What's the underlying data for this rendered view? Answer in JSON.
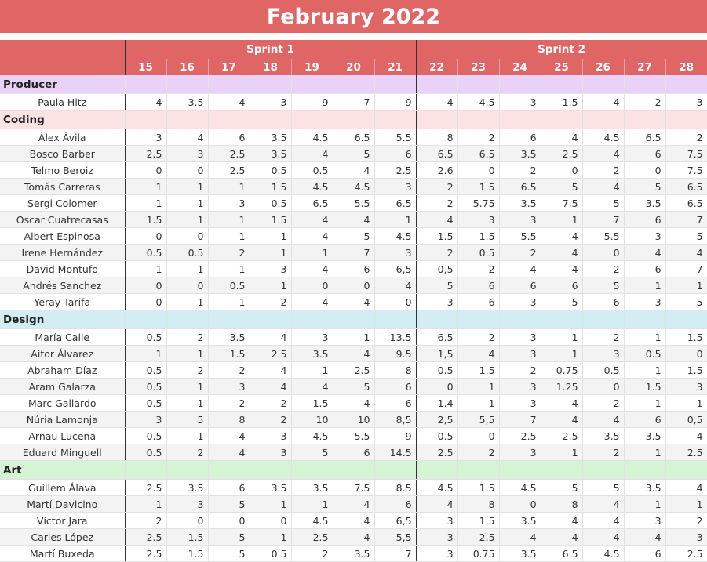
{
  "title": "February 2022",
  "sprints": [
    "Sprint 1",
    "Sprint 2"
  ],
  "days": [
    "15",
    "16",
    "17",
    "18",
    "19",
    "20",
    "21",
    "22",
    "23",
    "24",
    "25",
    "26",
    "27",
    "28"
  ],
  "sections": [
    {
      "name": "Producer",
      "color": "#ead1f7",
      "rows": [
        {
          "name": "Paula Hitz",
          "values": [
            "4",
            "3.5",
            "4",
            "3",
            "9",
            "7",
            "9",
            "4",
            "4.5",
            "3",
            "1.5",
            "4",
            "2",
            "3"
          ]
        }
      ]
    },
    {
      "name": "Coding",
      "color": "#fce3e3",
      "rows": [
        {
          "name": "Álex Ávila",
          "values": [
            "3",
            "4",
            "6",
            "3.5",
            "4.5",
            "6.5",
            "5.5",
            "8",
            "2",
            "6",
            "4",
            "4.5",
            "6.5",
            "2"
          ]
        },
        {
          "name": "Bosco Barber",
          "values": [
            "2.5",
            "3",
            "2.5",
            "3.5",
            "4",
            "5",
            "6",
            "6.5",
            "6.5",
            "3.5",
            "2.5",
            "4",
            "6",
            "7.5"
          ]
        },
        {
          "name": "Telmo Beroiz",
          "values": [
            "0",
            "0",
            "2.5",
            "0.5",
            "0.5",
            "4",
            "2.5",
            "2.6",
            "0",
            "2",
            "0",
            "2",
            "0",
            "7.5"
          ]
        },
        {
          "name": "Tomás Carreras",
          "values": [
            "1",
            "1",
            "1",
            "1.5",
            "4.5",
            "4.5",
            "3",
            "2",
            "1.5",
            "6.5",
            "5",
            "4",
            "5",
            "6.5"
          ]
        },
        {
          "name": "Sergi Colomer",
          "values": [
            "1",
            "1",
            "3",
            "0.5",
            "6.5",
            "5.5",
            "6.5",
            "2",
            "5.75",
            "3.5",
            "7.5",
            "5",
            "3.5",
            "6.5"
          ]
        },
        {
          "name": "Oscar Cuatrecasas",
          "values": [
            "1.5",
            "1",
            "1",
            "1.5",
            "4",
            "4",
            "1",
            "4",
            "3",
            "3",
            "1",
            "7",
            "6",
            "7"
          ]
        },
        {
          "name": "Albert Espinosa",
          "values": [
            "0",
            "0",
            "1",
            "1",
            "4",
            "5",
            "4.5",
            "1.5",
            "1.5",
            "5.5",
            "4",
            "5.5",
            "3",
            "5"
          ]
        },
        {
          "name": "Irene Hernández",
          "values": [
            "0.5",
            "0.5",
            "2",
            "1",
            "1",
            "7",
            "3",
            "2",
            "0.5",
            "2",
            "4",
            "0",
            "4",
            "4"
          ]
        },
        {
          "name": "David Montufo",
          "values": [
            "1",
            "1",
            "1",
            "3",
            "4",
            "6",
            "6,5",
            "0,5",
            "2",
            "4",
            "4",
            "2",
            "6",
            "7"
          ]
        },
        {
          "name": "Andrés Sanchez",
          "values": [
            "0",
            "0",
            "0.5",
            "1",
            "0",
            "0",
            "4",
            "5",
            "6",
            "6",
            "6",
            "5",
            "1",
            "1"
          ]
        },
        {
          "name": "Yeray Tarifa",
          "values": [
            "0",
            "1",
            "1",
            "2",
            "4",
            "4",
            "0",
            "3",
            "6",
            "3",
            "5",
            "6",
            "3",
            "5"
          ]
        }
      ]
    },
    {
      "name": "Design",
      "color": "#d4edf4",
      "rows": [
        {
          "name": "María Calle",
          "values": [
            "0.5",
            "2",
            "3.5",
            "4",
            "3",
            "1",
            "13.5",
            "6.5",
            "2",
            "3",
            "1",
            "2",
            "1",
            "1.5"
          ]
        },
        {
          "name": "Aitor Álvarez",
          "values": [
            "1",
            "1",
            "1.5",
            "2.5",
            "3.5",
            "4",
            "9.5",
            "1,5",
            "4",
            "3",
            "1",
            "3",
            "0.5",
            "0"
          ]
        },
        {
          "name": "Abraham Díaz",
          "values": [
            "0.5",
            "2",
            "2",
            "4",
            "1",
            "2.5",
            "8",
            "0.5",
            "1.5",
            "2",
            "0.75",
            "0.5",
            "1",
            "1.5"
          ]
        },
        {
          "name": "Aram Galarza",
          "values": [
            "0.5",
            "1",
            "3",
            "4",
            "4",
            "5",
            "6",
            "0",
            "1",
            "3",
            "1.25",
            "0",
            "1.5",
            "3"
          ]
        },
        {
          "name": "Marc Gallardo",
          "values": [
            "0.5",
            "1",
            "2",
            "2",
            "1.5",
            "4",
            "6",
            "1.4",
            "1",
            "3",
            "4",
            "2",
            "1",
            "1"
          ]
        },
        {
          "name": "Núria Lamonja",
          "values": [
            "3",
            "5",
            "8",
            "2",
            "10",
            "10",
            "8,5",
            "2,5",
            "5,5",
            "7",
            "4",
            "4",
            "6",
            "0,5"
          ]
        },
        {
          "name": "Arnau Lucena",
          "values": [
            "0.5",
            "1",
            "4",
            "3",
            "4.5",
            "5.5",
            "9",
            "0.5",
            "0",
            "2.5",
            "2.5",
            "3.5",
            "3.5",
            "4"
          ]
        },
        {
          "name": "Eduard Minguell",
          "values": [
            "0.5",
            "2",
            "4",
            "3",
            "5",
            "6",
            "14.5",
            "2.5",
            "2",
            "3",
            "1",
            "2",
            "1",
            "2.5"
          ]
        }
      ]
    },
    {
      "name": "Art",
      "color": "#d6f3d6",
      "rows": [
        {
          "name": "Guillem Álava",
          "values": [
            "2.5",
            "3.5",
            "6",
            "3.5",
            "3.5",
            "7.5",
            "8.5",
            "4.5",
            "1.5",
            "4.5",
            "5",
            "5",
            "3.5",
            "4"
          ]
        },
        {
          "name": "Martí Davicino",
          "values": [
            "1",
            "3",
            "5",
            "1",
            "1",
            "4",
            "6",
            "4",
            "8",
            "0",
            "8",
            "4",
            "1",
            "1"
          ]
        },
        {
          "name": "Víctor Jara",
          "values": [
            "2",
            "0",
            "0",
            "0",
            "4.5",
            "4",
            "6,5",
            "3",
            "1.5",
            "3.5",
            "4",
            "4",
            "3",
            "2"
          ]
        },
        {
          "name": "Carles López",
          "values": [
            "2.5",
            "1.5",
            "5",
            "1",
            "2.5",
            "4",
            "5,5",
            "3",
            "2,5",
            "4",
            "4",
            "4",
            "4",
            "3"
          ]
        },
        {
          "name": "Martí Buxeda",
          "values": [
            "2.5",
            "1.5",
            "5",
            "0.5",
            "2",
            "3.5",
            "7",
            "3",
            "0.75",
            "3.5",
            "6.5",
            "4.5",
            "6",
            "2.5"
          ]
        }
      ]
    }
  ],
  "colors": {
    "header": "#e06666"
  }
}
